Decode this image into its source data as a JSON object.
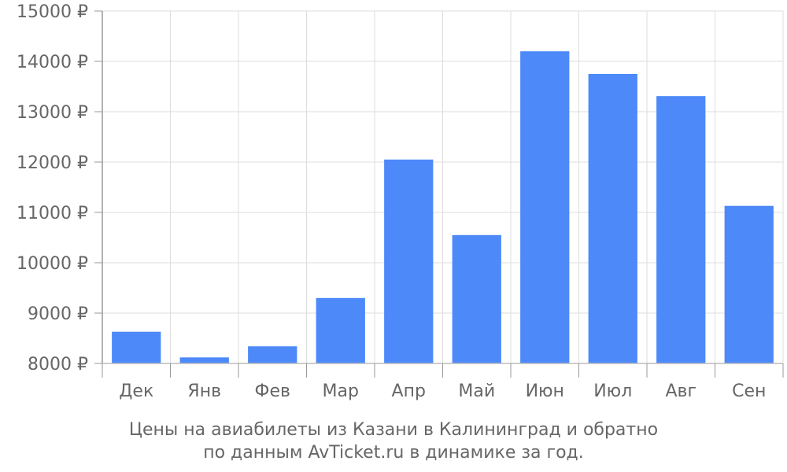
{
  "chart_data": {
    "type": "bar",
    "title": "",
    "xlabel": "",
    "ylabel": "",
    "categories": [
      "Дек",
      "Янв",
      "Фев",
      "Мар",
      "Апр",
      "Май",
      "Июн",
      "Июл",
      "Авг",
      "Сен"
    ],
    "values": [
      8630,
      8120,
      8340,
      9300,
      12050,
      10550,
      14200,
      13750,
      13310,
      11130
    ],
    "ylim": [
      8000,
      15000
    ],
    "yticks": [
      8000,
      9000,
      10000,
      11000,
      12000,
      13000,
      14000,
      15000
    ],
    "ytick_suffix": " ₽",
    "grid": true,
    "bar_color": "#4d89f9"
  },
  "caption": {
    "line1": "Цены на авиабилеты из Казани в Калининград и обратно",
    "line2": "по данным AvTicket.ru в динамике за год."
  }
}
